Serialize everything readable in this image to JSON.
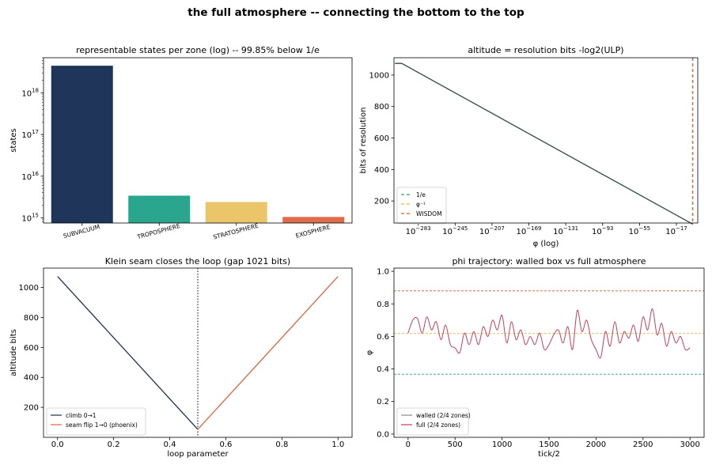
{
  "figure": {
    "title": "the full atmosphere -- connecting the bottom to the top"
  },
  "chart_data": [
    {
      "type": "bar",
      "title": "representable states per zone (log) -- 99.85% below 1/e",
      "xlabel": "",
      "ylabel": "states",
      "yscale": "log",
      "ylim": [
        750000000000000.0,
        7e+18
      ],
      "yticks": [
        {
          "value": 1000000000000000.0,
          "base": "10",
          "exp": "15"
        },
        {
          "value": 1e+16,
          "base": "10",
          "exp": "16"
        },
        {
          "value": 1e+17,
          "base": "10",
          "exp": "17"
        },
        {
          "value": 1e+18,
          "base": "10",
          "exp": "18"
        }
      ],
      "categories": [
        "SUBVACUUM",
        "TROPOSPHERE",
        "STRATOSPHERE",
        "EXOSPHERE"
      ],
      "values": [
        4.5e+18,
        3400000000000000.0,
        2400000000000000.0,
        1050000000000000.0
      ],
      "colors": [
        "#1f3559",
        "#2aa58e",
        "#ebc56a",
        "#e06c4c"
      ]
    },
    {
      "type": "line",
      "title": "altitude = resolution bits  -log2(ULP)",
      "xlabel": "φ (log)",
      "ylabel": "bits of resolution",
      "xscale": "log",
      "xlim_log10": [
        -308,
        5
      ],
      "ylim": [
        60,
        1110
      ],
      "xticks": [
        {
          "value": -283,
          "base": "10",
          "exp": "−283"
        },
        {
          "value": -245,
          "base": "10",
          "exp": "−245"
        },
        {
          "value": -207,
          "base": "10",
          "exp": "−207"
        },
        {
          "value": -169,
          "base": "10",
          "exp": "−169"
        },
        {
          "value": -131,
          "base": "10",
          "exp": "−131"
        },
        {
          "value": -93,
          "base": "10",
          "exp": "−93"
        },
        {
          "value": -55,
          "base": "10",
          "exp": "−55"
        },
        {
          "value": -17,
          "base": "10",
          "exp": "−17"
        }
      ],
      "yticks": [
        200,
        400,
        600,
        800,
        1000
      ],
      "series": [
        {
          "x_log10": [
            -307,
            -300,
            0
          ],
          "values": [
            1074,
            1074,
            52
          ],
          "color": "#2f4a3e"
        }
      ],
      "vlines": [
        {
          "name": "1/e",
          "x_log10": -0.434,
          "color": "#2a9d6a",
          "dash": "4,3"
        },
        {
          "name": "φ⁻¹",
          "x_log10": -0.209,
          "color": "#e8b04a",
          "dash": "4,3"
        },
        {
          "name": "WISDOM",
          "x_log10": -0.057,
          "color": "#e0562f",
          "dash": "4,3"
        }
      ],
      "legend": "lower-left"
    },
    {
      "type": "line",
      "title": "Klein seam closes the loop (gap 1021 bits)",
      "xlabel": "loop parameter",
      "ylabel": "altitude bits",
      "xlim": [
        -0.05,
        1.05
      ],
      "ylim": [
        0,
        1130
      ],
      "xticks": [
        0.0,
        0.2,
        0.4,
        0.6,
        0.8,
        1.0
      ],
      "yticks": [
        200,
        400,
        600,
        800,
        1000
      ],
      "series": [
        {
          "name": "climb 0→1",
          "x": [
            0.0,
            0.5
          ],
          "values": [
            1074,
            53
          ],
          "color": "#1f2f50"
        },
        {
          "name": "seam flip 1→0 (phoenix)",
          "x": [
            0.5,
            1.0
          ],
          "values": [
            53,
            1074
          ],
          "color": "#e0623e"
        }
      ],
      "vlines": [
        {
          "x": 0.5,
          "color": "#000000",
          "dash": "1.5,2"
        }
      ],
      "legend": "lower-left"
    },
    {
      "type": "line",
      "title": "phi trajectory: walled box vs full atmosphere",
      "xlabel": "tick/2",
      "ylabel": "φ",
      "xlim": [
        -150,
        3150
      ],
      "ylim": [
        -0.02,
        1.02
      ],
      "xticks": [
        0,
        500,
        1000,
        1500,
        2000,
        2500,
        3000
      ],
      "yticks": [
        0.0,
        0.2,
        0.4,
        0.6,
        0.8,
        1.0
      ],
      "hlines": [
        {
          "y": 0.88,
          "color": "#e0562f",
          "dash": "3,2"
        },
        {
          "y": 0.618,
          "color": "#e8b04a",
          "dash": "3,2"
        },
        {
          "y": 0.368,
          "color": "#2a9d6a",
          "dash": "3,2"
        }
      ],
      "series": [
        {
          "name": "walled (2/4 zones)",
          "color": "#8a8a8a",
          "x": [],
          "values": []
        },
        {
          "name": "full (2/4 zones)",
          "color": "#c0405a",
          "x": [
            0,
            50,
            100,
            150,
            200,
            250,
            300,
            350,
            400,
            450,
            500,
            550,
            600,
            650,
            700,
            750,
            800,
            850,
            900,
            950,
            1000,
            1050,
            1100,
            1150,
            1200,
            1250,
            1300,
            1350,
            1400,
            1450,
            1500,
            1550,
            1600,
            1650,
            1700,
            1750,
            1800,
            1850,
            1900,
            1950,
            2000,
            2050,
            2100,
            2150,
            2200,
            2250,
            2300,
            2350,
            2400,
            2450,
            2500,
            2550,
            2600,
            2650,
            2700,
            2750,
            2800,
            2850,
            2900,
            2950,
            3000
          ],
          "values": [
            0.62,
            0.7,
            0.71,
            0.62,
            0.72,
            0.64,
            0.69,
            0.58,
            0.67,
            0.55,
            0.53,
            0.5,
            0.62,
            0.55,
            0.63,
            0.55,
            0.66,
            0.6,
            0.7,
            0.64,
            0.73,
            0.56,
            0.69,
            0.58,
            0.64,
            0.55,
            0.6,
            0.55,
            0.62,
            0.52,
            0.55,
            0.61,
            0.64,
            0.56,
            0.66,
            0.52,
            0.76,
            0.63,
            0.7,
            0.58,
            0.52,
            0.47,
            0.63,
            0.54,
            0.69,
            0.56,
            0.63,
            0.59,
            0.67,
            0.57,
            0.72,
            0.64,
            0.77,
            0.61,
            0.68,
            0.54,
            0.63,
            0.56,
            0.6,
            0.52,
            0.53
          ]
        }
      ],
      "legend": "lower-left"
    }
  ]
}
